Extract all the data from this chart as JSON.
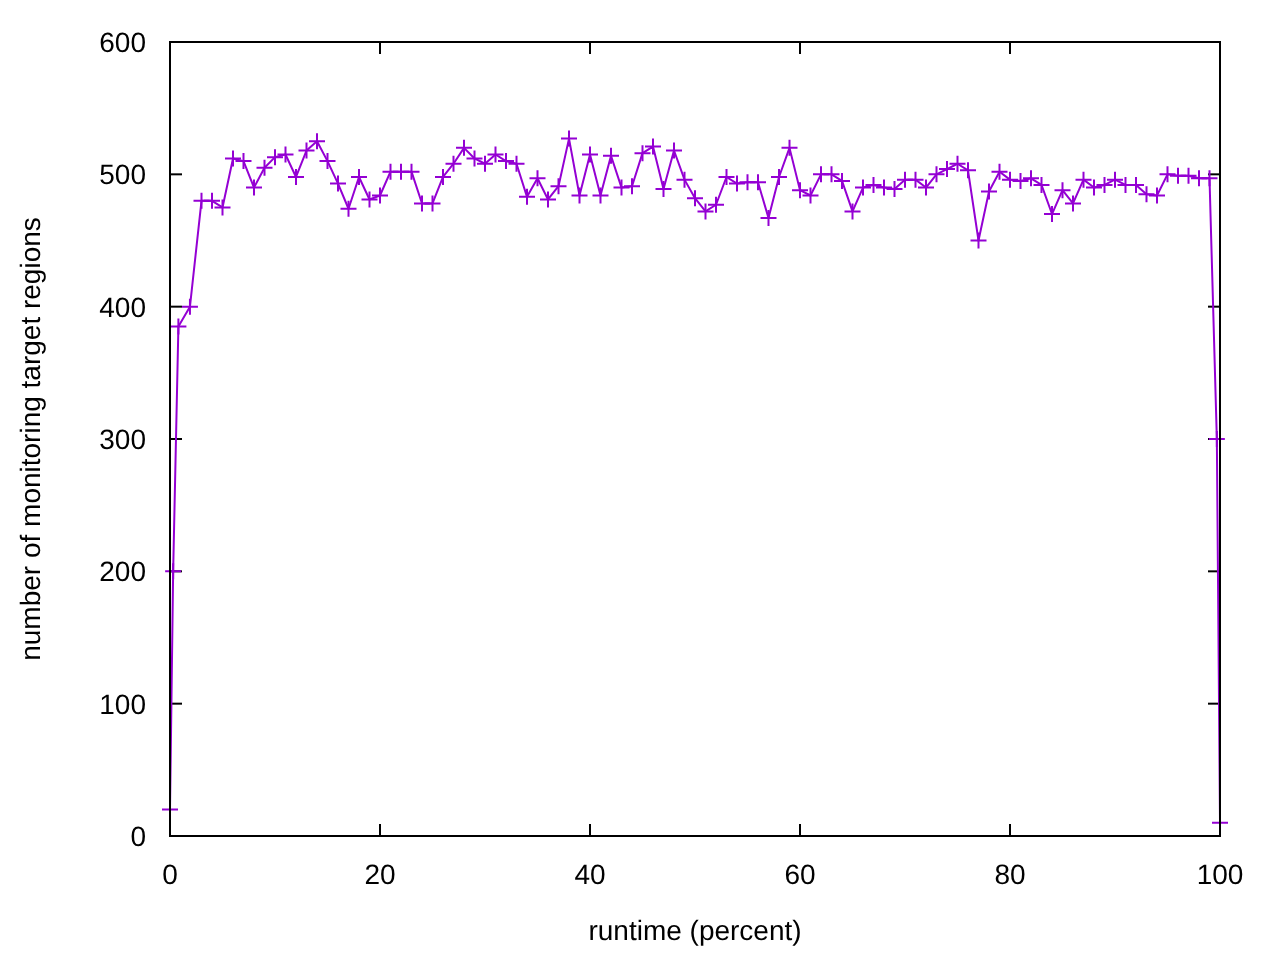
{
  "chart_data": {
    "type": "line",
    "xlabel": "runtime (percent)",
    "ylabel": "number of monitoring target regions",
    "xlim": [
      0,
      100
    ],
    "ylim": [
      0,
      600
    ],
    "xticks": [
      0,
      20,
      40,
      60,
      80,
      100
    ],
    "yticks": [
      0,
      100,
      200,
      300,
      400,
      500,
      600
    ],
    "marker": "cross",
    "line_style": "solid",
    "series": [
      {
        "color": "#9400d3",
        "x": [
          0,
          0.3,
          0.8,
          1.9,
          3,
          4,
          5,
          6,
          7,
          8,
          9,
          10,
          11,
          12,
          13,
          14,
          15,
          16,
          17,
          18,
          19,
          20,
          21,
          22,
          23,
          24,
          25,
          26,
          27,
          28,
          29,
          30,
          31,
          32,
          33,
          34,
          35,
          36,
          37,
          38,
          39,
          40,
          41,
          42,
          43,
          44,
          45,
          46,
          47,
          48,
          49,
          50,
          51,
          52,
          53,
          54,
          55,
          56,
          57,
          58,
          59,
          60,
          61,
          62,
          63,
          64,
          65,
          66,
          67,
          68,
          69,
          70,
          71,
          72,
          73,
          74,
          75,
          76,
          77,
          78,
          79,
          80,
          81,
          82,
          83,
          84,
          85,
          86,
          87,
          88,
          89,
          90,
          91,
          92,
          93,
          94,
          95,
          96,
          97,
          98,
          99,
          99.7,
          100
        ],
        "values": [
          20,
          200,
          385,
          400,
          480,
          480,
          475,
          512,
          510,
          490,
          505,
          513,
          515,
          498,
          518,
          525,
          510,
          493,
          474,
          498,
          481,
          484,
          502,
          502,
          502,
          478,
          478,
          498,
          508,
          520,
          512,
          508,
          515,
          510,
          508,
          483,
          497,
          481,
          491,
          527,
          484,
          515,
          484,
          514,
          490,
          491,
          516,
          521,
          489,
          518,
          496,
          482,
          472,
          477,
          498,
          493,
          494,
          494,
          467,
          498,
          520,
          488,
          484,
          500,
          500,
          495,
          472,
          490,
          492,
          490,
          489,
          496,
          496,
          490,
          500,
          504,
          508,
          503,
          450,
          487,
          502,
          496,
          495,
          497,
          492,
          470,
          488,
          478,
          496,
          490,
          492,
          496,
          492,
          492,
          485,
          484,
          500,
          499,
          499,
          497,
          497,
          300,
          10
        ]
      }
    ]
  }
}
